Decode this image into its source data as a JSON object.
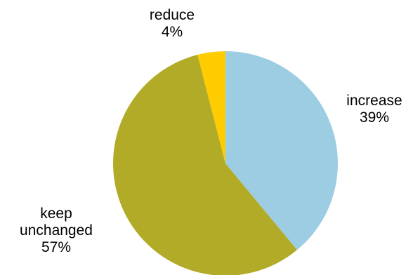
{
  "chart_data": {
    "type": "pie",
    "title": "",
    "start_angle_deg": 0,
    "direction": "clockwise",
    "slices": [
      {
        "label": "increase",
        "value": 39,
        "value_label": "39%",
        "color": "#9ccde3"
      },
      {
        "label": "keep unchanged",
        "label_lines": [
          "keep",
          "unchanged"
        ],
        "value": 57,
        "value_label": "57%",
        "color": "#b2ab27"
      },
      {
        "label": "reduce",
        "value": 4,
        "value_label": "4%",
        "color": "#ffcc00"
      }
    ]
  }
}
